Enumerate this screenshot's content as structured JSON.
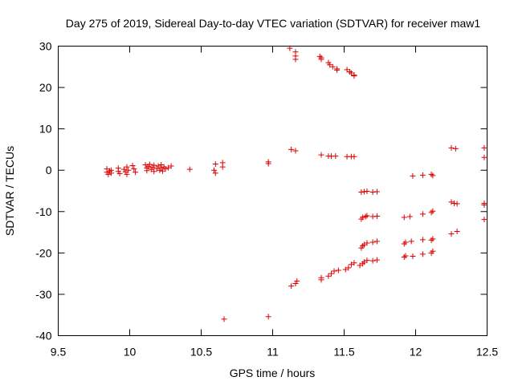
{
  "chart_data": {
    "type": "scatter",
    "title": "Day 275 of 2019, Sidereal Day-to-day VTEC variation (SDTVAR) for receiver maw1",
    "xlabel": "GPS time / hours",
    "ylabel": "SDTVAR / TECUs",
    "xlim": [
      9.5,
      12.5
    ],
    "ylim": [
      -40,
      30
    ],
    "xticks": [
      9.5,
      10,
      10.5,
      11,
      11.5,
      12,
      12.5
    ],
    "xtick_labels": [
      "9.5",
      "10",
      "10.5",
      "11",
      "11.5",
      "12",
      "12.5"
    ],
    "yticks": [
      -40,
      -30,
      -20,
      -10,
      0,
      10,
      20,
      30
    ],
    "ytick_labels": [
      "-40",
      "-30",
      "-20",
      "-10",
      "0",
      "10",
      "20",
      "30"
    ],
    "grid": false,
    "marker": "plus",
    "marker_color": "#dd0000",
    "series": [
      {
        "name": "SDTVAR",
        "points": [
          [
            9.84,
            -0.5
          ],
          [
            9.84,
            0.3
          ],
          [
            9.85,
            -1.0
          ],
          [
            9.86,
            -0.2
          ],
          [
            9.87,
            0.0
          ],
          [
            9.87,
            -0.7
          ],
          [
            9.92,
            -0.3
          ],
          [
            9.92,
            0.5
          ],
          [
            9.93,
            -0.8
          ],
          [
            9.96,
            0.2
          ],
          [
            9.97,
            -0.4
          ],
          [
            9.98,
            0.8
          ],
          [
            9.98,
            -1.0
          ],
          [
            9.99,
            0.0
          ],
          [
            10.02,
            1.1
          ],
          [
            10.03,
            0.3
          ],
          [
            10.04,
            -0.5
          ],
          [
            10.11,
            1.3
          ],
          [
            10.12,
            0.5
          ],
          [
            10.12,
            -0.1
          ],
          [
            10.13,
            0.9
          ],
          [
            10.14,
            1.4
          ],
          [
            10.15,
            0.2
          ],
          [
            10.16,
            0.7
          ],
          [
            10.17,
            1.2
          ],
          [
            10.17,
            -0.3
          ],
          [
            10.19,
            0.4
          ],
          [
            10.2,
            1.0
          ],
          [
            10.21,
            0.0
          ],
          [
            10.22,
            0.6
          ],
          [
            10.22,
            1.3
          ],
          [
            10.23,
            -0.2
          ],
          [
            10.24,
            0.8
          ],
          [
            10.25,
            0.3
          ],
          [
            10.27,
            0.6
          ],
          [
            10.29,
            1.0
          ],
          [
            10.42,
            0.2
          ],
          [
            10.59,
            0.0
          ],
          [
            10.6,
            -0.7
          ],
          [
            10.6,
            1.5
          ],
          [
            10.65,
            0.8
          ],
          [
            10.65,
            1.8
          ],
          [
            10.97,
            2.0
          ],
          [
            10.97,
            1.6
          ],
          [
            11.13,
            5.0
          ],
          [
            11.16,
            4.7
          ],
          [
            11.34,
            3.7
          ],
          [
            11.39,
            3.4
          ],
          [
            11.41,
            3.4
          ],
          [
            11.44,
            3.4
          ],
          [
            11.52,
            3.3
          ],
          [
            11.55,
            3.3
          ],
          [
            11.57,
            3.3
          ],
          [
            12.25,
            5.4
          ],
          [
            12.28,
            5.2
          ],
          [
            12.48,
            5.4
          ],
          [
            12.48,
            3.1
          ],
          [
            11.12,
            29.5
          ],
          [
            11.16,
            28.6
          ],
          [
            11.16,
            27.6
          ],
          [
            11.16,
            26.8
          ],
          [
            11.33,
            27.5
          ],
          [
            11.34,
            26.8
          ],
          [
            11.34,
            27.2
          ],
          [
            11.39,
            26.0
          ],
          [
            11.4,
            25.5
          ],
          [
            11.42,
            25.0
          ],
          [
            11.45,
            24.5
          ],
          [
            11.45,
            24.2
          ],
          [
            11.52,
            24.3
          ],
          [
            11.54,
            23.8
          ],
          [
            11.55,
            23.5
          ],
          [
            11.57,
            23.0
          ],
          [
            11.57,
            22.8
          ],
          [
            11.62,
            -5.3
          ],
          [
            11.64,
            -5.2
          ],
          [
            11.66,
            -5.1
          ],
          [
            11.7,
            -5.3
          ],
          [
            11.73,
            -5.2
          ],
          [
            11.62,
            -11.8
          ],
          [
            11.63,
            -11.4
          ],
          [
            11.65,
            -11.2
          ],
          [
            11.66,
            -11.0
          ],
          [
            11.7,
            -11.2
          ],
          [
            11.73,
            -11.1
          ],
          [
            11.92,
            -11.4
          ],
          [
            11.96,
            -11.2
          ],
          [
            12.05,
            -10.6
          ],
          [
            12.11,
            -10.2
          ],
          [
            12.12,
            -9.9
          ],
          [
            12.25,
            -7.7
          ],
          [
            12.27,
            -8.0
          ],
          [
            12.29,
            -8.1
          ],
          [
            12.48,
            -8.0
          ],
          [
            12.48,
            -8.4
          ],
          [
            12.48,
            -11.9
          ],
          [
            11.98,
            -1.4
          ],
          [
            12.05,
            -1.2
          ],
          [
            12.11,
            -1.0
          ],
          [
            12.12,
            -1.3
          ],
          [
            11.62,
            -18.8
          ],
          [
            11.63,
            -18.3
          ],
          [
            11.64,
            -18.0
          ],
          [
            11.66,
            -17.6
          ],
          [
            11.7,
            -17.4
          ],
          [
            11.73,
            -17.2
          ],
          [
            11.92,
            -17.8
          ],
          [
            11.93,
            -17.4
          ],
          [
            11.97,
            -17.2
          ],
          [
            12.05,
            -16.8
          ],
          [
            12.11,
            -16.9
          ],
          [
            12.12,
            -16.6
          ],
          [
            11.61,
            -23.0
          ],
          [
            11.63,
            -22.6
          ],
          [
            11.64,
            -22.2
          ],
          [
            11.66,
            -21.8
          ],
          [
            11.7,
            -21.9
          ],
          [
            11.73,
            -21.7
          ],
          [
            11.92,
            -21.0
          ],
          [
            11.93,
            -20.7
          ],
          [
            11.98,
            -20.8
          ],
          [
            12.05,
            -20.3
          ],
          [
            12.11,
            -20.0
          ],
          [
            12.12,
            -19.6
          ],
          [
            12.25,
            -15.4
          ],
          [
            12.29,
            -14.8
          ],
          [
            11.13,
            -28.0
          ],
          [
            11.16,
            -27.4
          ],
          [
            11.17,
            -26.8
          ],
          [
            11.34,
            -26.5
          ],
          [
            11.34,
            -26.0
          ],
          [
            11.39,
            -25.6
          ],
          [
            11.41,
            -25.0
          ],
          [
            11.43,
            -24.4
          ],
          [
            11.46,
            -24.2
          ],
          [
            11.51,
            -24.0
          ],
          [
            11.53,
            -23.6
          ],
          [
            11.55,
            -22.8
          ],
          [
            11.57,
            -22.4
          ],
          [
            10.66,
            -36.0
          ],
          [
            10.97,
            -35.4
          ]
        ]
      }
    ]
  }
}
